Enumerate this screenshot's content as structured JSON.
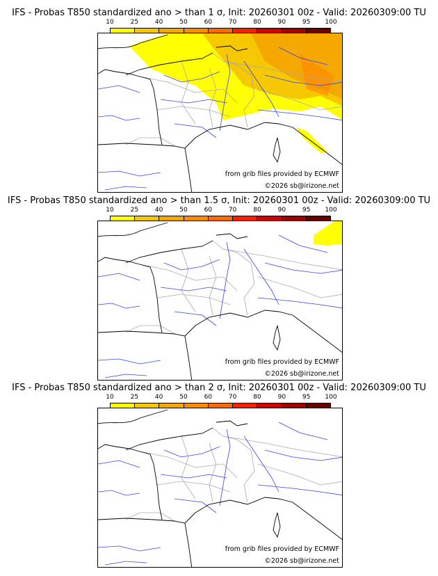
{
  "colorbar": {
    "ticks": [
      "10",
      "25",
      "40",
      "50",
      "60",
      "70",
      "80",
      "90",
      "95",
      "100"
    ],
    "colors": [
      "#ffff00",
      "#f5c800",
      "#f5a800",
      "#ff8c00",
      "#ff6a00",
      "#ff2000",
      "#d40000",
      "#a00000",
      "#6a0000"
    ]
  },
  "panels": [
    {
      "title": "IFS - Probas T850  standardized ano > than 1 σ, Init: 20260301 00z - Valid: 20260309:00 TU",
      "credit_source": "from grib files provided by ECMWF",
      "credit_copyright": "©2026 sb@irizone.net"
    },
    {
      "title": "IFS - Probas T850  standardized ano > than 1.5 σ, Init: 20260301 00z - Valid: 20260309:00 TU",
      "credit_source": "from grib files provided by ECMWF",
      "credit_copyright": "©2026 sb@irizone.net"
    },
    {
      "title": "IFS - Probas T850  standardized ano > than 2 σ, Init: 20260301 00z - Valid: 20260309:00 TU",
      "credit_source": "from grib files provided by ECMWF",
      "credit_copyright": "©2026 sb@irizone.net"
    }
  ]
}
